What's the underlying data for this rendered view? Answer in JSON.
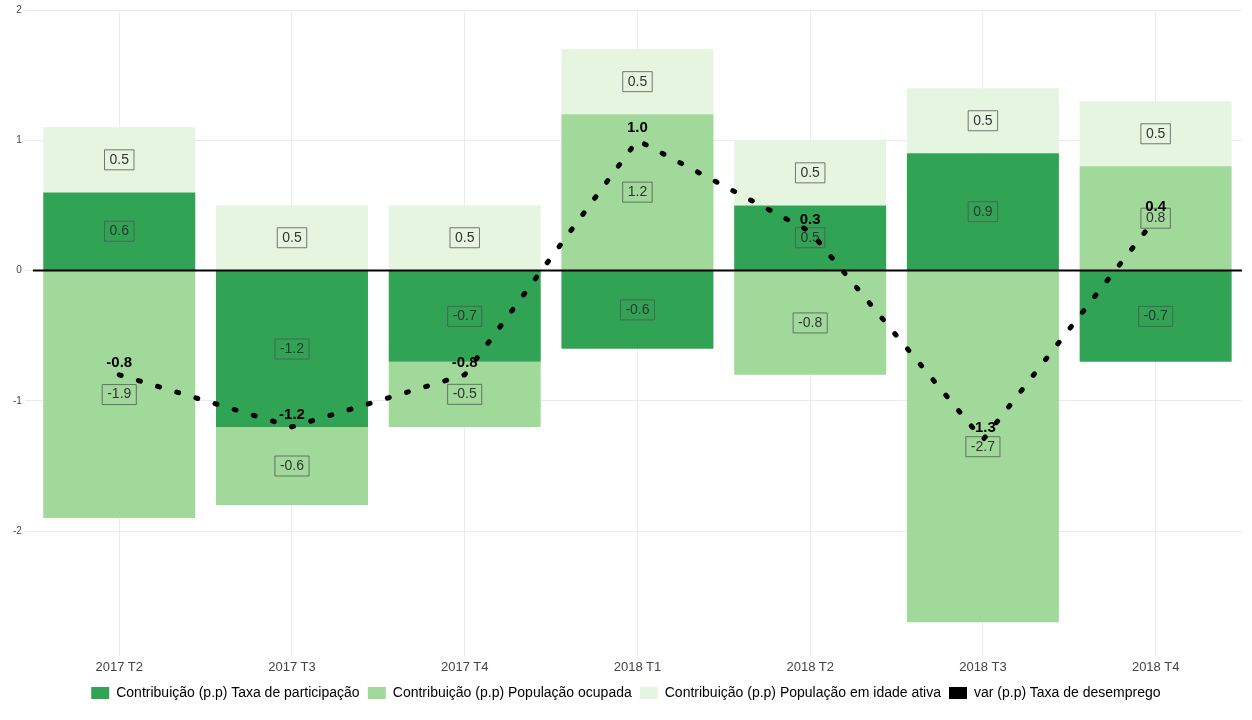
{
  "chart_data": {
    "type": "bar",
    "stacked": true,
    "categories": [
      "2017 T2",
      "2017 T3",
      "2017 T4",
      "2018 T1",
      "2018 T2",
      "2018 T3",
      "2018 T4"
    ],
    "series": [
      {
        "name": "Contribuição (p.p) Taxa de participação",
        "color": "#31a354",
        "values": [
          0.6,
          -1.2,
          -0.7,
          -0.6,
          0.5,
          0.9,
          -0.7
        ],
        "value_labels": [
          "0.6",
          "-1.2",
          "-0.7",
          "-0.6",
          "0.5",
          "0.9",
          "-0.7"
        ]
      },
      {
        "name": "Contribuição (p.p) População ocupada",
        "color": "#a1d99b",
        "values": [
          -1.9,
          -0.6,
          -0.5,
          1.2,
          -0.8,
          -2.7,
          0.8
        ],
        "value_labels": [
          "-1.9",
          "-0.6",
          "-0.5",
          "1.2",
          "-0.8",
          "-2.7",
          "0.8"
        ]
      },
      {
        "name": "Contribuição (p.p) População em idade ativa",
        "color": "#e5f5e0",
        "values": [
          0.5,
          0.5,
          0.5,
          0.5,
          0.5,
          0.5,
          0.5
        ],
        "value_labels": [
          "0.5",
          "0.5",
          "0.5",
          "0.5",
          "0.5",
          "0.5",
          "0.5"
        ]
      },
      {
        "name": "var (p.p) Taxa de desemprego",
        "type": "line",
        "color": "#000000",
        "line_style": "dotted",
        "marker": "none",
        "values": [
          -0.8,
          -1.2,
          -0.8,
          1.0,
          0.3,
          -1.3,
          0.4
        ],
        "value_labels": [
          "-0.8",
          "-1.2",
          "-0.8",
          "1.0",
          "0.3",
          "-1.3",
          "0.4"
        ]
      }
    ],
    "ylim": [
      -2.9,
      2
    ],
    "yticks": [
      -2,
      -1,
      0,
      1,
      2
    ],
    "grid": true,
    "legend": "bottom",
    "ref_lines": [
      {
        "axis": "y",
        "value": 0,
        "color": "#000000"
      }
    ]
  }
}
